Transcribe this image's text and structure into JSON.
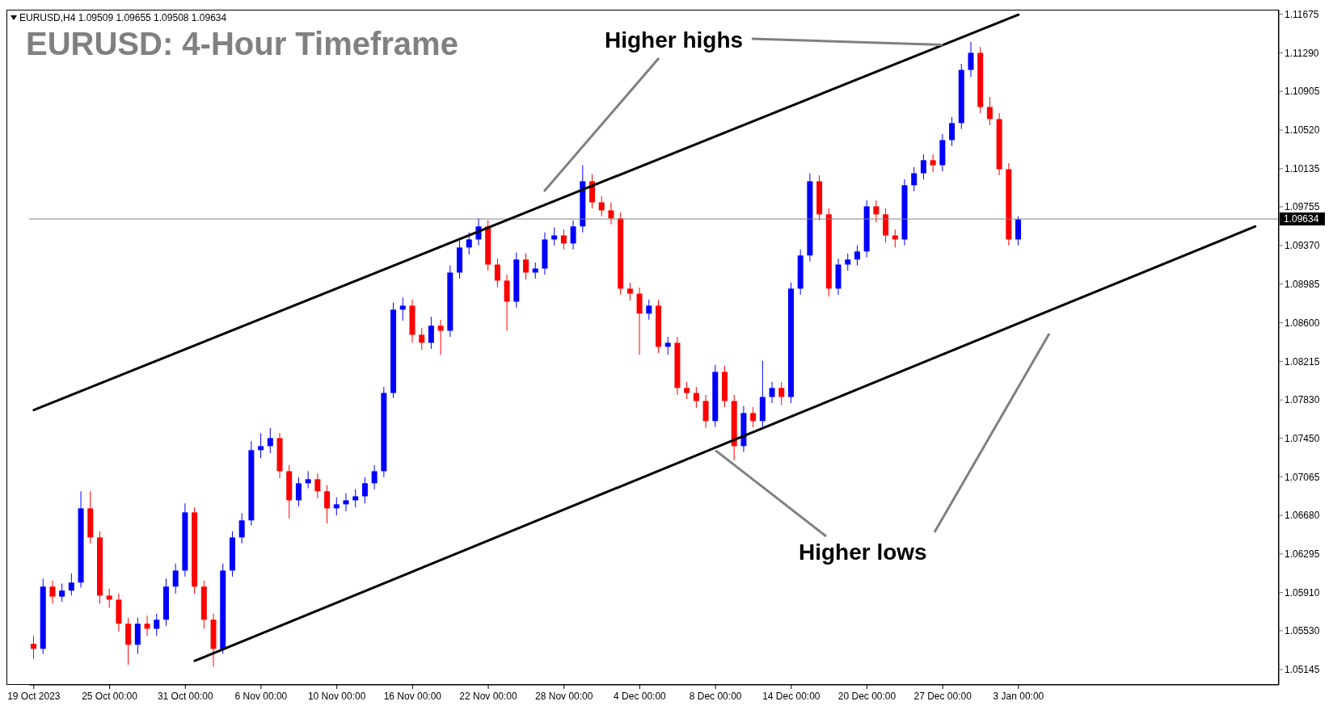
{
  "chart_data": {
    "type": "candlestick",
    "title": "EURUSD: 4-Hour Timeframe",
    "annotations": [
      "EURUSD,H4  1.09509 1.09655 1.09508 1.09634",
      {
        "text": "Higher highs",
        "x": "27 Dec 00:00",
        "y": 1.1137
      },
      {
        "text": "Higher lows",
        "x": "8 Dec 00:00",
        "y": 1.0736
      }
    ],
    "categories": [
      "19 Oct 2023",
      null,
      null,
      null,
      null,
      null,
      null,
      null,
      "25 Oct 00:00",
      null,
      null,
      null,
      null,
      null,
      null,
      null,
      "31 Oct 00:00",
      null,
      null,
      null,
      null,
      null,
      null,
      null,
      "6 Nov 00:00",
      null,
      null,
      null,
      null,
      null,
      null,
      null,
      "10 Nov 00:00",
      null,
      null,
      null,
      null,
      null,
      null,
      null,
      "16 Nov 00:00",
      null,
      null,
      null,
      null,
      null,
      null,
      null,
      "22 Nov 00:00",
      null,
      null,
      null,
      null,
      null,
      null,
      null,
      "28 Nov 00:00",
      null,
      null,
      null,
      null,
      null,
      null,
      null,
      "4 Dec 00:00",
      null,
      null,
      null,
      null,
      null,
      null,
      null,
      "8 Dec 00:00",
      null,
      null,
      null,
      null,
      null,
      null,
      null,
      "14 Dec 00:00",
      null,
      null,
      null,
      null,
      null,
      null,
      null,
      "20 Dec 00:00",
      null,
      null,
      null,
      null,
      null,
      null,
      null,
      "27 Dec 00:00",
      null,
      null,
      null,
      null,
      null,
      null,
      null,
      "3 Jan 00:00",
      null,
      null,
      null,
      null,
      null,
      null,
      null,
      null,
      null,
      null,
      null,
      null,
      null,
      null,
      null,
      null,
      null,
      null,
      null,
      null,
      null,
      null,
      null,
      null,
      null,
      null,
      null
    ],
    "colors": [
      "#ff0000",
      "#0000ff",
      "#ff0000",
      "#0000ff",
      "#0000ff",
      "#0000ff",
      "#ff0000",
      "#ff0000",
      "#ff0000",
      "#ff0000",
      "#ff0000",
      "#0000ff",
      "#ff0000",
      "#0000ff",
      "#0000ff",
      "#0000ff",
      "#0000ff",
      "#ff0000",
      "#ff0000",
      "#ff0000",
      "#0000ff",
      "#0000ff",
      "#0000ff",
      "#0000ff",
      "#0000ff",
      "#0000ff",
      "#ff0000",
      "#ff0000",
      "#0000ff",
      "#0000ff",
      "#ff0000",
      "#ff0000",
      "#0000ff",
      "#0000ff",
      "#0000ff",
      "#0000ff",
      "#0000ff",
      "#0000ff",
      "#0000ff",
      "#0000ff",
      "#ff0000",
      "#ff0000",
      "#0000ff",
      "#ff0000",
      "#0000ff",
      "#0000ff",
      "#0000ff",
      "#0000ff",
      "#ff0000",
      "#ff0000",
      "#ff0000",
      "#0000ff",
      "#ff0000",
      "#0000ff",
      "#0000ff",
      "#0000ff",
      "#ff0000",
      "#0000ff",
      "#0000ff",
      "#ff0000",
      "#ff0000",
      "#ff0000",
      "#ff0000",
      "#ff0000",
      "#ff0000",
      "#0000ff",
      "#ff0000",
      "#0000ff",
      "#ff0000",
      "#ff0000",
      "#ff0000",
      "#ff0000",
      "#0000ff",
      "#ff0000",
      "#ff0000",
      "#0000ff",
      "#ff0000",
      "#0000ff",
      "#0000ff",
      "#ff0000",
      "#0000ff",
      "#0000ff",
      "#0000ff",
      "#ff0000",
      "#ff0000",
      "#0000ff",
      "#0000ff",
      "#0000ff",
      "#0000ff",
      "#ff0000",
      "#ff0000",
      "#ff0000",
      "#0000ff",
      "#0000ff",
      "#0000ff",
      "#ff0000",
      "#0000ff",
      "#0000ff",
      "#0000ff",
      "#0000ff",
      "#ff0000",
      "#ff0000",
      "#ff0000",
      "#ff0000",
      "#0000ff",
      null,
      null,
      null,
      null,
      null,
      null,
      null,
      null,
      null,
      null,
      null,
      null,
      null,
      null,
      null,
      null,
      null,
      null,
      null,
      null,
      null,
      null,
      null,
      null,
      null,
      null,
      null
    ],
    "ohlc": [
      [
        1.054,
        1.0548,
        1.0525,
        1.0535
      ],
      [
        1.0535,
        1.0605,
        1.053,
        1.0597
      ],
      [
        1.0597,
        1.0603,
        1.058,
        1.0587
      ],
      [
        1.0587,
        1.06,
        1.0582,
        1.0593
      ],
      [
        1.0593,
        1.061,
        1.0588,
        1.0601
      ],
      [
        1.0601,
        1.0692,
        1.0596,
        1.0675
      ],
      [
        1.0675,
        1.0692,
        1.064,
        1.0646
      ],
      [
        1.0646,
        1.0652,
        1.058,
        1.0588
      ],
      [
        1.0588,
        1.0595,
        1.0576,
        1.0584
      ],
      [
        1.0584,
        1.059,
        1.0552,
        1.056
      ],
      [
        1.056,
        1.0566,
        1.0519,
        1.0539
      ],
      [
        1.0539,
        1.0566,
        1.053,
        1.056
      ],
      [
        1.056,
        1.0568,
        1.0548,
        1.0555
      ],
      [
        1.0555,
        1.057,
        1.0548,
        1.0564
      ],
      [
        1.0564,
        1.0605,
        1.0558,
        1.0597
      ],
      [
        1.0597,
        1.062,
        1.059,
        1.0613
      ],
      [
        1.0613,
        1.068,
        1.0607,
        1.0671
      ],
      [
        1.0671,
        1.0676,
        1.059,
        1.0597
      ],
      [
        1.0597,
        1.0603,
        1.0555,
        1.0564
      ],
      [
        1.0564,
        1.057,
        1.0517,
        1.0535
      ],
      [
        1.0535,
        1.062,
        1.053,
        1.0613
      ],
      [
        1.0613,
        1.0652,
        1.0607,
        1.0646
      ],
      [
        1.0646,
        1.067,
        1.064,
        1.0663
      ],
      [
        1.0663,
        1.0742,
        1.0658,
        1.0733
      ],
      [
        1.0733,
        1.075,
        1.0725,
        1.0737
      ],
      [
        1.0737,
        1.0755,
        1.073,
        1.0745
      ],
      [
        1.0745,
        1.075,
        1.0705,
        1.0712
      ],
      [
        1.0712,
        1.0718,
        1.0665,
        1.0683
      ],
      [
        1.0683,
        1.0706,
        1.0677,
        1.07
      ],
      [
        1.07,
        1.0712,
        1.0695,
        1.0704
      ],
      [
        1.0704,
        1.071,
        1.0685,
        1.0692
      ],
      [
        1.0692,
        1.0698,
        1.066,
        1.0675
      ],
      [
        1.0675,
        1.0686,
        1.0668,
        1.0679
      ],
      [
        1.0679,
        1.069,
        1.0672,
        1.0683
      ],
      [
        1.0683,
        1.0694,
        1.0676,
        1.0687
      ],
      [
        1.0687,
        1.0706,
        1.068,
        1.07
      ],
      [
        1.07,
        1.0718,
        1.0694,
        1.0712
      ],
      [
        1.0712,
        1.0796,
        1.0706,
        1.079
      ],
      [
        1.079,
        1.088,
        1.0785,
        1.0873
      ],
      [
        1.0873,
        1.0885,
        1.0862,
        1.0877
      ],
      [
        1.0877,
        1.0883,
        1.084,
        1.0848
      ],
      [
        1.0848,
        1.0855,
        1.0833,
        1.084
      ],
      [
        1.084,
        1.0866,
        1.0834,
        1.0857
      ],
      [
        1.0857,
        1.0863,
        1.0828,
        1.0852
      ],
      [
        1.0852,
        1.0917,
        1.0846,
        1.091
      ],
      [
        1.091,
        1.0942,
        1.0904,
        1.0935
      ],
      [
        1.0935,
        1.095,
        1.0928,
        1.0943
      ],
      [
        1.0943,
        1.0964,
        1.0937,
        1.0956
      ],
      [
        1.0956,
        1.0962,
        1.0912,
        1.0918
      ],
      [
        1.0918,
        1.0924,
        1.0895,
        1.0902
      ],
      [
        1.0902,
        1.0908,
        1.0852,
        1.0881
      ],
      [
        1.0881,
        1.093,
        1.0875,
        1.0923
      ],
      [
        1.0923,
        1.0929,
        1.0903,
        1.091
      ],
      [
        1.091,
        1.092,
        1.0904,
        1.0914
      ],
      [
        1.0914,
        1.095,
        1.0908,
        1.0943
      ],
      [
        1.0943,
        1.0955,
        1.0937,
        1.0947
      ],
      [
        1.0947,
        1.0953,
        1.0933,
        1.0939
      ],
      [
        1.0939,
        1.0962,
        1.0933,
        1.0956
      ],
      [
        1.0956,
        1.1017,
        1.095,
        1.1001
      ],
      [
        1.1001,
        1.1008,
        1.0974,
        1.098
      ],
      [
        1.098,
        1.0986,
        1.0966,
        1.0972
      ],
      [
        1.0972,
        1.098,
        1.0958,
        1.0964
      ],
      [
        1.0964,
        1.097,
        1.0888,
        1.0894
      ],
      [
        1.0894,
        1.09,
        1.0882,
        1.0889
      ],
      [
        1.0889,
        1.0895,
        1.0828,
        1.0869
      ],
      [
        1.0869,
        1.0883,
        1.0863,
        1.0877
      ],
      [
        1.0877,
        1.0883,
        1.083,
        1.0836
      ],
      [
        1.0836,
        1.0846,
        1.0828,
        1.084
      ],
      [
        1.084,
        1.0846,
        1.0788,
        1.0795
      ],
      [
        1.0795,
        1.0801,
        1.0784,
        1.079
      ],
      [
        1.079,
        1.0796,
        1.0775,
        1.0782
      ],
      [
        1.0782,
        1.0788,
        1.0755,
        1.0762
      ],
      [
        1.0762,
        1.0818,
        1.0756,
        1.0811
      ],
      [
        1.0811,
        1.0817,
        1.0776,
        1.0782
      ],
      [
        1.0782,
        1.0788,
        1.0723,
        1.0737
      ],
      [
        1.0737,
        1.0777,
        1.0731,
        1.077
      ],
      [
        1.077,
        1.0776,
        1.0756,
        1.0762
      ],
      [
        1.0762,
        1.0822,
        1.0756,
        1.0786
      ],
      [
        1.0786,
        1.0801,
        1.078,
        1.0795
      ],
      [
        1.0795,
        1.0801,
        1.0778,
        1.0786
      ],
      [
        1.0786,
        1.09,
        1.078,
        1.0894
      ],
      [
        1.0894,
        1.0933,
        1.0888,
        1.0927
      ],
      [
        1.0927,
        1.1009,
        1.0921,
        1.1001
      ],
      [
        1.1001,
        1.1007,
        1.0962,
        1.0968
      ],
      [
        1.0968,
        1.0974,
        1.0886,
        1.0894
      ],
      [
        1.0894,
        1.0924,
        1.0888,
        1.0918
      ],
      [
        1.0918,
        1.0929,
        1.0912,
        1.0923
      ],
      [
        1.0923,
        1.0937,
        1.0917,
        1.0931
      ],
      [
        1.0931,
        1.0982,
        1.0925,
        1.0976
      ],
      [
        1.0976,
        1.0982,
        1.096,
        1.0968
      ],
      [
        1.0968,
        1.0974,
        1.094,
        1.0947
      ],
      [
        1.0947,
        1.0953,
        1.0935,
        1.0943
      ],
      [
        1.0943,
        1.1003,
        1.0937,
        1.0997
      ],
      [
        1.0997,
        1.1015,
        1.0991,
        1.1009
      ],
      [
        1.1009,
        1.1028,
        1.1003,
        1.1022
      ],
      [
        1.1022,
        1.1028,
        1.101,
        1.1017
      ],
      [
        1.1017,
        1.1048,
        1.1011,
        1.1042
      ],
      [
        1.1042,
        1.1065,
        1.1036,
        1.1059
      ],
      [
        1.1059,
        1.1118,
        1.1053,
        1.1112
      ],
      [
        1.1112,
        1.114,
        1.1105,
        1.1129
      ],
      [
        1.1129,
        1.1135,
        1.1069,
        1.1075
      ],
      [
        1.1075,
        1.1085,
        1.1057,
        1.1063
      ],
      [
        1.1063,
        1.1069,
        1.1007,
        1.1013
      ],
      [
        1.1013,
        1.1019,
        1.0937,
        1.0943
      ],
      [
        1.0943,
        1.0966,
        1.0937,
        1.0963
      ],
      null,
      null,
      null,
      null,
      null,
      null,
      null,
      null,
      null,
      null,
      null,
      null,
      null,
      null,
      null,
      null,
      null,
      null,
      null,
      null,
      null,
      null,
      null,
      null,
      null,
      null,
      null
    ],
    "series": [
      {
        "type": "line",
        "color": "#000000",
        "values": [
          1.0773,
          null,
          null,
          null,
          null,
          null,
          null,
          null,
          null,
          null,
          null,
          null,
          null,
          null,
          null,
          null,
          null,
          null,
          null,
          null,
          null,
          null,
          null,
          null,
          null,
          null,
          null,
          null,
          null,
          null,
          null,
          null,
          null,
          null,
          null,
          null,
          null,
          null,
          null,
          null,
          null,
          null,
          null,
          null,
          null,
          null,
          null,
          null,
          null,
          null,
          null,
          null,
          null,
          null,
          null,
          null,
          null,
          null,
          null,
          null,
          null,
          null,
          null,
          null,
          null,
          null,
          null,
          null,
          null,
          null,
          null,
          null,
          null,
          null,
          null,
          null,
          null,
          null,
          null,
          null,
          null,
          null,
          null,
          null,
          null,
          null,
          null,
          null,
          null,
          null,
          null,
          null,
          null,
          null,
          null,
          null,
          null,
          null,
          null,
          null,
          null,
          null,
          null,
          null,
          1.1167,
          null,
          null,
          null,
          null,
          null,
          null,
          null,
          null,
          null,
          null,
          null,
          null,
          null,
          null,
          null,
          null,
          null,
          null,
          null,
          null,
          null,
          null,
          null,
          null,
          null,
          null,
          null
        ]
      },
      {
        "type": "line",
        "color": "#000000",
        "values": [
          null,
          null,
          null,
          null,
          null,
          null,
          null,
          null,
          null,
          null,
          null,
          null,
          null,
          null,
          null,
          null,
          null,
          1.0523,
          null,
          null,
          null,
          null,
          null,
          null,
          null,
          null,
          null,
          null,
          null,
          null,
          null,
          null,
          null,
          null,
          null,
          null,
          null,
          null,
          null,
          null,
          null,
          null,
          null,
          null,
          null,
          null,
          null,
          null,
          null,
          null,
          null,
          null,
          null,
          null,
          null,
          null,
          null,
          null,
          null,
          null,
          null,
          null,
          null,
          null,
          null,
          null,
          null,
          null,
          null,
          null,
          null,
          null,
          null,
          null,
          null,
          null,
          null,
          null,
          null,
          null,
          null,
          null,
          null,
          null,
          null,
          null,
          null,
          null,
          null,
          null,
          null,
          null,
          null,
          null,
          null,
          null,
          null,
          null,
          null,
          null,
          null,
          null,
          null,
          null,
          null,
          null,
          null,
          null,
          null,
          null,
          null,
          null,
          null,
          null,
          null,
          null,
          null,
          null,
          null,
          null,
          null,
          null,
          null,
          null,
          null,
          null,
          null,
          null,
          null,
          1.0956,
          null,
          null
        ]
      }
    ],
    "ylim": [
      1.0499,
      1.1172
    ],
    "yticks": [
      1.05145,
      {
        "value": 1.0553,
        "label": "1.05530"
      },
      {
        "value": 1.0591,
        "label": "1.05910"
      },
      1.06295,
      {
        "value": 1.0668,
        "label": "1.06680"
      },
      1.07065,
      {
        "value": 1.0745,
        "label": "1.07450"
      },
      {
        "value": 1.0783,
        "label": "1.07830"
      },
      1.08215,
      {
        "value": 1.086,
        "label": "1.08600"
      },
      1.08985,
      {
        "value": 1.0937,
        "label": "1.09370"
      },
      1.09755,
      1.10135,
      {
        "value": 1.1052,
        "label": "1.10520"
      },
      1.10905,
      {
        "value": 1.1129,
        "label": "1.11290"
      },
      1.11675
    ],
    "ref_lines": [
      {
        "axis": "y",
        "value": 1.09634,
        "label": "1.09634",
        "color": "#808080"
      }
    ]
  }
}
